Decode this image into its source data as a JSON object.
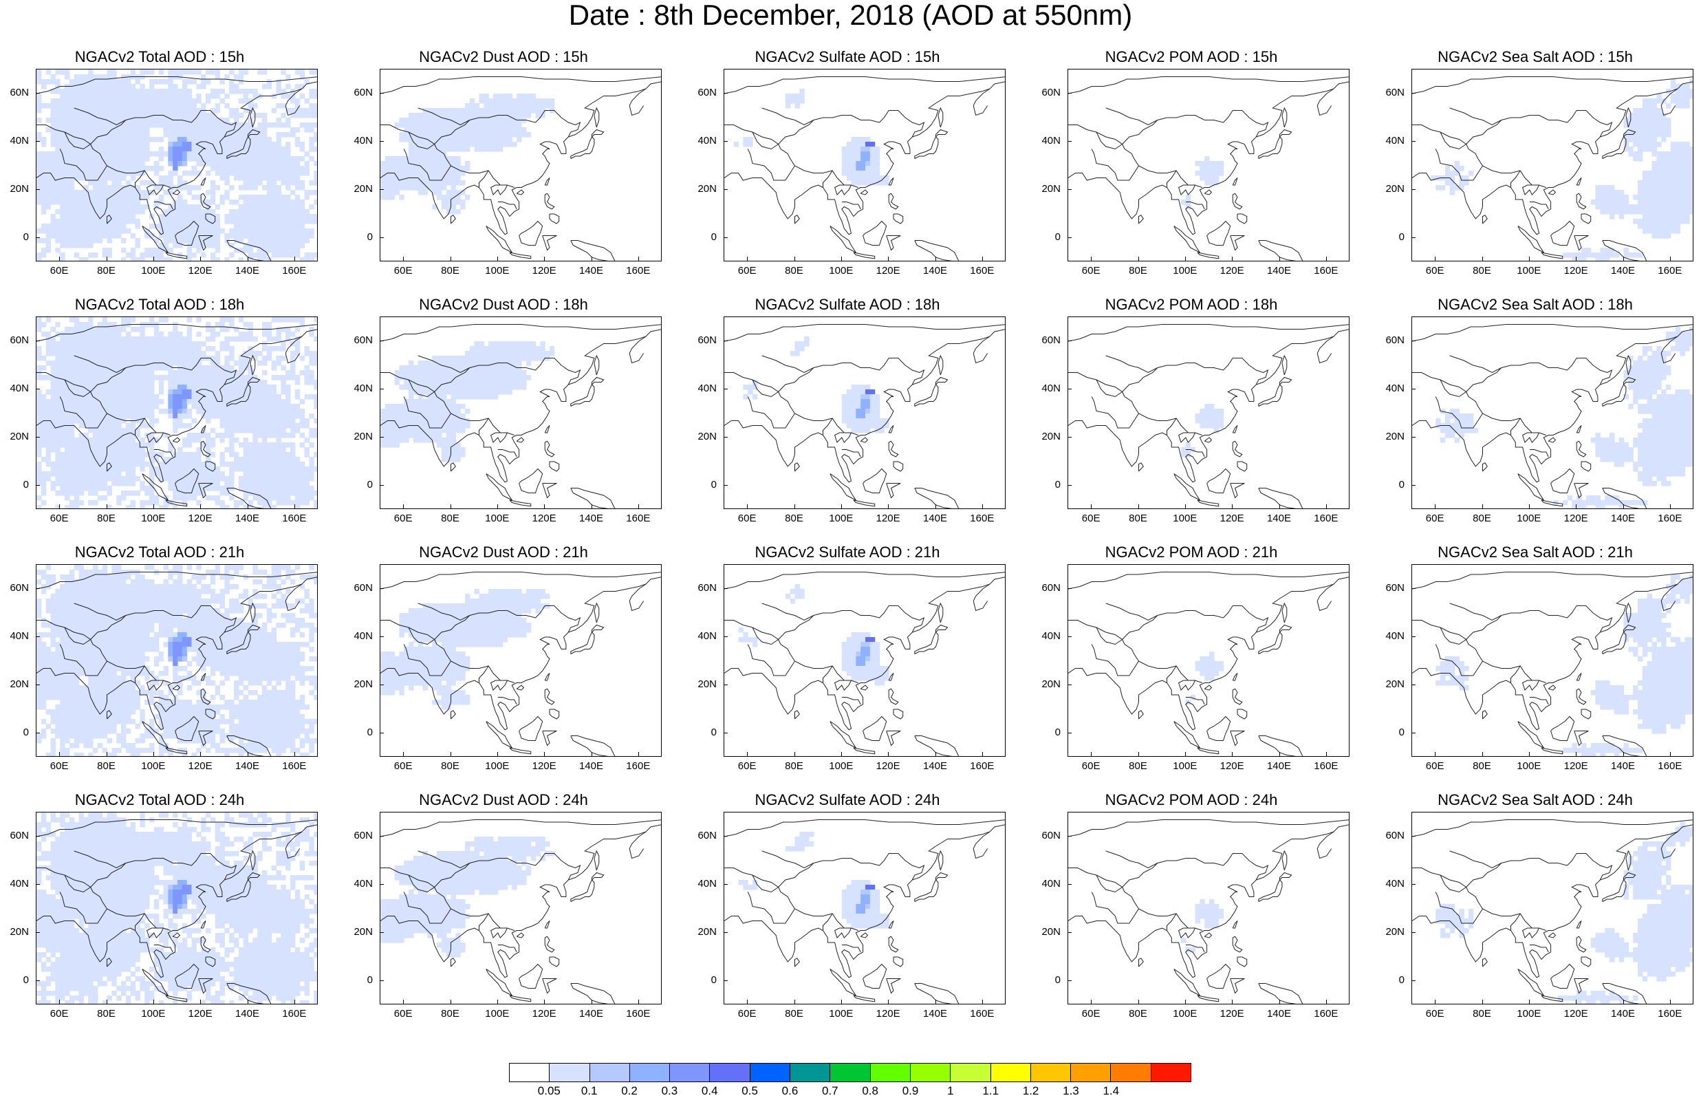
{
  "title": "Date : 8th December, 2018 (AOD at 550nm)",
  "species": [
    {
      "id": "total",
      "label": "NGACv2 Total AOD"
    },
    {
      "id": "dust",
      "label": "NGACv2 Dust AOD"
    },
    {
      "id": "sulfate",
      "label": "NGACv2 Sulfate AOD"
    },
    {
      "id": "pom",
      "label": "NGACv2 POM AOD"
    },
    {
      "id": "seasalt",
      "label": "NGACv2 Sea Salt AOD"
    }
  ],
  "forecast_hours": [
    "15h",
    "18h",
    "21h",
    "24h"
  ],
  "panel_titles": [
    [
      "NGACv2 Total AOD : 15h",
      "NGACv2 Dust AOD : 15h",
      "NGACv2 Sulfate AOD : 15h",
      "NGACv2 POM AOD : 15h",
      "NGACv2 Sea Salt AOD : 15h"
    ],
    [
      "NGACv2 Total AOD : 18h",
      "NGACv2 Dust AOD : 18h",
      "NGACv2 Sulfate AOD : 18h",
      "NGACv2 POM AOD : 18h",
      "NGACv2 Sea Salt AOD : 18h"
    ],
    [
      "NGACv2 Total AOD : 21h",
      "NGACv2 Dust AOD : 21h",
      "NGACv2 Sulfate AOD : 21h",
      "NGACv2 POM AOD : 21h",
      "NGACv2 Sea Salt AOD : 21h"
    ],
    [
      "NGACv2 Total AOD : 24h",
      "NGACv2 Dust AOD : 24h",
      "NGACv2 Sulfate AOD : 24h",
      "NGACv2 POM AOD : 24h",
      "NGACv2 Sea Salt  AOD : 24h"
    ]
  ],
  "map_extent": {
    "lon_min": 50,
    "lon_max": 170,
    "lat_min": -10,
    "lat_max": 70
  },
  "lat_ticks": [
    "60N",
    "40N",
    "20N",
    "0"
  ],
  "lat_tick_values": [
    60,
    40,
    20,
    0
  ],
  "lon_ticks": [
    "60E",
    "80E",
    "100E",
    "120E",
    "140E",
    "160E"
  ],
  "lon_tick_values": [
    60,
    80,
    100,
    120,
    140,
    160
  ],
  "colorbar": {
    "labels": [
      "0.05",
      "0.1",
      "0.2",
      "0.3",
      "0.4",
      "0.5",
      "0.6",
      "0.7",
      "0.8",
      "0.9",
      "1",
      "1.1",
      "1.2",
      "1.3",
      "1.4"
    ],
    "colors": [
      "#ffffff",
      "#d6e2ff",
      "#b5c9ff",
      "#8eb2ff",
      "#7f96ff",
      "#6370f8",
      "#0063ff",
      "#009696",
      "#00c633",
      "#63ff00",
      "#96ff00",
      "#c6ff33",
      "#ffff00",
      "#ffc600",
      "#ffa000",
      "#ff7c00",
      "#ff1900"
    ]
  },
  "colors": {
    "coastline": "#222222",
    "background": "#ffffff"
  }
}
